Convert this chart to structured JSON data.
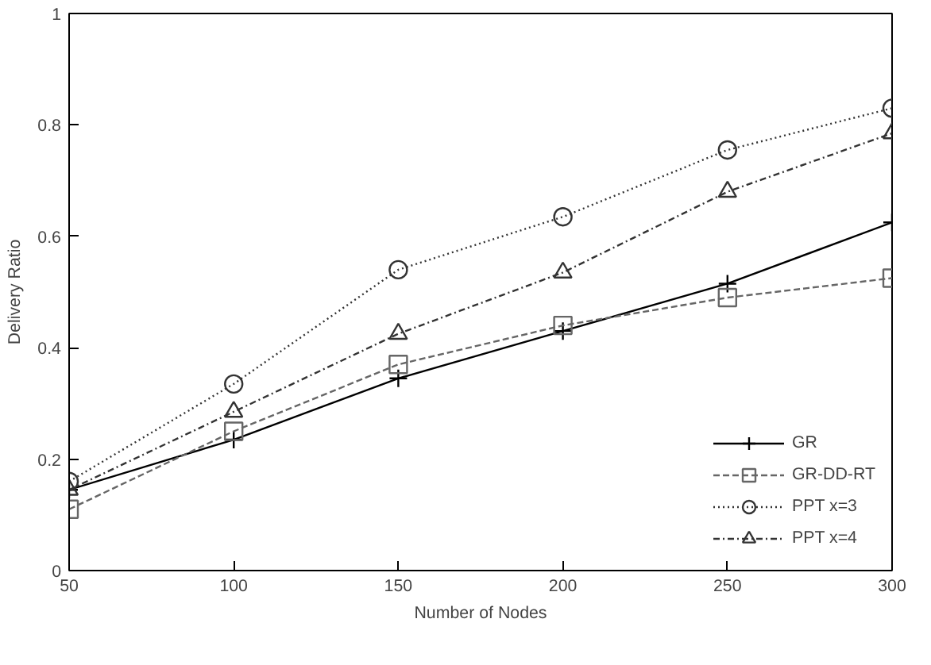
{
  "chart_data": {
    "type": "line",
    "xlabel": "Number of Nodes",
    "ylabel": "Delivery Ratio",
    "x": [
      50,
      100,
      150,
      200,
      250,
      300
    ],
    "xlim": [
      50,
      300
    ],
    "xticks": [
      50,
      100,
      150,
      200,
      250,
      300
    ],
    "ylim": [
      0,
      1
    ],
    "yticks": [
      0,
      0.2,
      0.4,
      0.6,
      0.8,
      1
    ],
    "grid": false,
    "legend": "bottom right",
    "series": [
      {
        "name": "GR",
        "color": "#000000",
        "marker": "cross",
        "line_style": "solid",
        "values": [
          0.145,
          0.235,
          0.345,
          0.43,
          0.515,
          0.625
        ]
      },
      {
        "name": "GR-DD-RT",
        "color": "#666666",
        "marker": "square",
        "line_style": "dashed",
        "values": [
          0.11,
          0.25,
          0.37,
          0.44,
          0.49,
          0.525
        ]
      },
      {
        "name": "PPT x=3",
        "color": "#333333",
        "marker": "circle",
        "line_style": "dotted",
        "values": [
          0.16,
          0.335,
          0.54,
          0.635,
          0.755,
          0.83
        ]
      },
      {
        "name": "PPT x=4",
        "color": "#333333",
        "marker": "triangle",
        "line_style": "dashdot",
        "values": [
          0.145,
          0.285,
          0.425,
          0.535,
          0.68,
          0.785
        ]
      }
    ]
  }
}
